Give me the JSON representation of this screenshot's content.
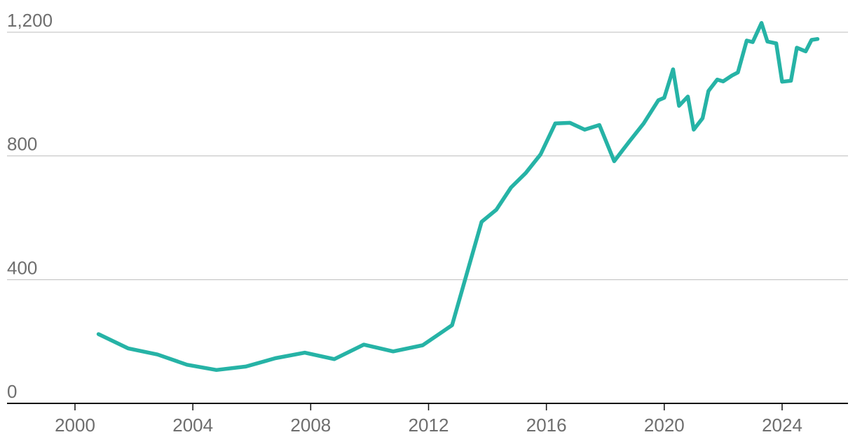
{
  "chart_data": {
    "type": "line",
    "title": "",
    "xlabel": "",
    "ylabel": "",
    "xlim": [
      1998.0,
      2026.2
    ],
    "ylim": [
      0,
      1200
    ],
    "grid": true,
    "x_ticks": [
      2000,
      2004,
      2008,
      2012,
      2016,
      2020,
      2024
    ],
    "x_tick_labels": [
      "2000",
      "2004",
      "2008",
      "2012",
      "2016",
      "2020",
      "2024"
    ],
    "y_ticks": [
      0,
      400,
      800,
      1200
    ],
    "y_tick_labels": [
      "0",
      "400",
      "800",
      "1,200"
    ],
    "colors": {
      "series": "#26b3a6",
      "grid": "#bdbdbd",
      "axis": "#111111",
      "tick_label": "#6e6e6e"
    },
    "series": [
      {
        "x": [
          2000.8,
          2001.8,
          2002.8,
          2003.8,
          2004.8,
          2005.8,
          2006.8,
          2007.8,
          2008.8,
          2009.8,
          2010.8,
          2011.8,
          2012.8,
          2013.8,
          2014.3,
          2014.8,
          2015.3,
          2015.8,
          2016.3,
          2016.8,
          2017.3,
          2017.8,
          2018.3,
          2018.8,
          2019.3,
          2019.8,
          2020.0,
          2020.3,
          2020.5,
          2020.8,
          2021.0,
          2021.3,
          2021.5,
          2021.8,
          2022.0,
          2022.3,
          2022.5,
          2022.8,
          2023.0,
          2023.3,
          2023.5,
          2023.8,
          2024.0,
          2024.3,
          2024.5,
          2024.8,
          2025.0,
          2025.2
        ],
        "values": [
          224,
          178,
          158,
          125,
          108,
          119,
          146,
          164,
          143,
          190,
          168,
          188,
          253,
          587,
          626,
          698,
          745,
          805,
          905,
          907,
          885,
          900,
          783,
          845,
          905,
          980,
          988,
          1080,
          962,
          992,
          885,
          922,
          1010,
          1047,
          1041,
          1060,
          1070,
          1173,
          1168,
          1230,
          1170,
          1164,
          1040,
          1043,
          1150,
          1138,
          1175,
          1178
        ]
      }
    ]
  }
}
